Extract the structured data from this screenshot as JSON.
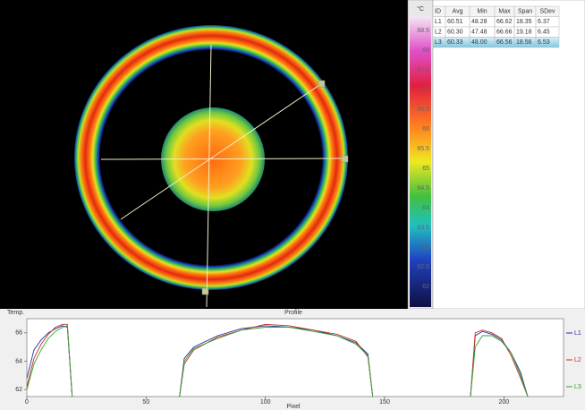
{
  "colorbar": {
    "unit": "°C",
    "labels": [
      "68.5",
      "68",
      "67.5",
      "67",
      "66.5",
      "66",
      "65.5",
      "65",
      "64.5",
      "64",
      "63.5",
      "63",
      "62.5",
      "62"
    ]
  },
  "table": {
    "columns": [
      "ID",
      "Avg",
      "Min",
      "Max",
      "Span",
      "SDev"
    ],
    "rows": [
      [
        "L1",
        "60.51",
        "48.28",
        "66.62",
        "18.35",
        "6.37"
      ],
      [
        "L2",
        "60.30",
        "47.48",
        "66.66",
        "19.18",
        "6.45"
      ],
      [
        "L3",
        "60.33",
        "48.00",
        "66.56",
        "18.56",
        "6.53"
      ]
    ]
  },
  "chart_data": {
    "type": "line",
    "title": "Profile",
    "ylabel": "Temp.",
    "xlabel": "Pixel",
    "x": [
      0,
      3,
      6,
      9,
      12,
      15,
      17,
      19,
      40,
      64,
      66,
      70,
      80,
      90,
      100,
      110,
      120,
      130,
      138,
      143,
      145,
      170,
      186,
      188,
      191,
      195,
      199,
      203,
      207,
      210
    ],
    "series": [
      {
        "name": "L1",
        "color": "#2030a0",
        "values": [
          62.8,
          64.8,
          65.5,
          66.0,
          66.3,
          66.5,
          66.4,
          61.5,
          null,
          61.5,
          64.2,
          65.0,
          65.8,
          66.3,
          66.5,
          66.4,
          66.2,
          65.8,
          65.3,
          64.5,
          61.5,
          null,
          61.5,
          65.8,
          66.1,
          65.9,
          65.5,
          64.6,
          63.2,
          61.5
        ]
      },
      {
        "name": "L2",
        "color": "#c03020",
        "values": [
          62.2,
          64.2,
          65.2,
          65.9,
          66.4,
          66.6,
          66.6,
          61.5,
          null,
          61.5,
          63.8,
          64.8,
          65.7,
          66.2,
          66.6,
          66.5,
          66.2,
          65.9,
          65.4,
          64.3,
          61.5,
          null,
          61.5,
          66.0,
          66.2,
          66.0,
          65.6,
          64.4,
          62.8,
          61.5
        ]
      },
      {
        "name": "L3",
        "color": "#30a030",
        "values": [
          62.0,
          63.8,
          64.8,
          65.6,
          66.1,
          66.4,
          66.5,
          61.5,
          null,
          61.5,
          64.0,
          64.9,
          65.6,
          66.2,
          66.4,
          66.4,
          66.1,
          65.8,
          65.2,
          64.4,
          61.5,
          null,
          61.5,
          65.0,
          65.8,
          65.8,
          65.4,
          64.6,
          63.0,
          61.5
        ]
      }
    ],
    "xlim": [
      0,
      225
    ],
    "ylim": [
      61.5,
      67
    ],
    "xticks": [
      0,
      50,
      100,
      150,
      200
    ],
    "yticks": [
      62,
      64,
      66
    ]
  }
}
